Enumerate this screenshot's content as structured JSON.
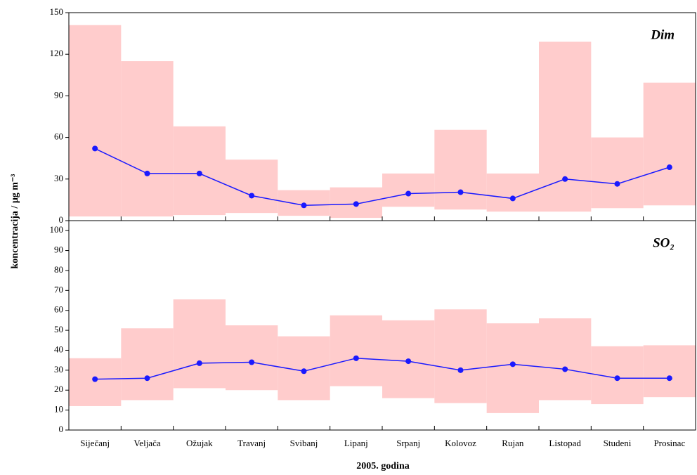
{
  "chart_data": [
    {
      "type": "line",
      "title": "Dim",
      "ylabel": "koncentracija / μg m⁻³",
      "ylim": [
        0,
        150
      ],
      "yticks": [
        0,
        30,
        60,
        90,
        120,
        150
      ],
      "ranges": {
        "color": "#ffcccc",
        "low": [
          3,
          3,
          4,
          5.5,
          3.5,
          2,
          10,
          8,
          6.5,
          6.5,
          9,
          11
        ],
        "high": [
          141,
          115,
          68,
          44,
          22,
          24,
          34,
          65.5,
          34,
          129,
          60,
          99.5
        ]
      },
      "series": [
        {
          "color": "#1a1aff",
          "values": [
            52,
            34,
            34,
            18,
            11,
            12,
            19.5,
            20.5,
            16,
            30,
            26.5,
            38.5
          ]
        }
      ]
    },
    {
      "type": "line",
      "title": "SO₂",
      "xlabel": "2005. godina",
      "categories": [
        "Siječanj",
        "Veljača",
        "Ožujak",
        "Travanj",
        "Svibanj",
        "Lipanj",
        "Srpanj",
        "Kolovoz",
        "Rujan",
        "Listopad",
        "Studeni",
        "Prosinac"
      ],
      "ylim": [
        0,
        105
      ],
      "yticks": [
        0,
        10,
        20,
        30,
        40,
        50,
        60,
        70,
        80,
        90,
        100
      ],
      "ranges": {
        "color": "#ffcccc",
        "low": [
          12,
          15,
          21,
          20,
          15,
          22,
          16,
          13.5,
          8.5,
          15,
          13,
          16.5
        ],
        "high": [
          36,
          51,
          65.5,
          52.5,
          47,
          57.5,
          55,
          60.5,
          53.5,
          56,
          42,
          42.5
        ]
      },
      "series": [
        {
          "color": "#1a1aff",
          "values": [
            25.5,
            26,
            33.5,
            34,
            29.5,
            36,
            34.5,
            30,
            33,
            30.5,
            26,
            26
          ]
        }
      ]
    }
  ]
}
